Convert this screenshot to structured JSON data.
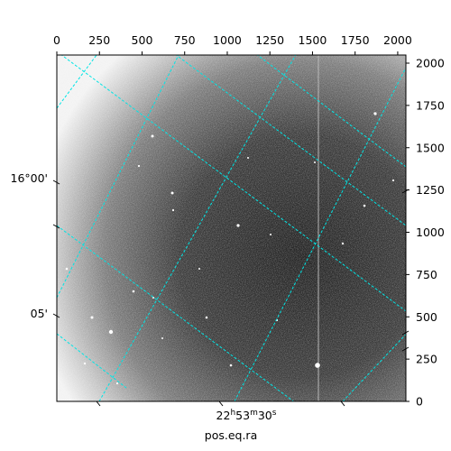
{
  "figure": {
    "xlabel": "pos.eq.ra",
    "grid_color": "#00e5e5",
    "image_palette": {
      "background": "#ffffff",
      "sky_dark": "#1e1e1e",
      "sky_mid": "#555555"
    },
    "top_axis": {
      "ticks": [
        0,
        250,
        500,
        750,
        1000,
        1250,
        1500,
        1750,
        2000
      ],
      "range": [
        0,
        2048
      ]
    },
    "right_axis": {
      "ticks": [
        0,
        250,
        500,
        750,
        1000,
        1250,
        1500,
        1750,
        2000
      ],
      "range": [
        0,
        2048
      ]
    },
    "left_labels": [
      {
        "id": "dec-16-00",
        "text": "16°00'"
      },
      {
        "id": "dec-05",
        "text": "05'"
      }
    ],
    "bottom_labels": [
      {
        "id": "ra-22-53-30",
        "text": "22h53m30s"
      }
    ]
  }
}
